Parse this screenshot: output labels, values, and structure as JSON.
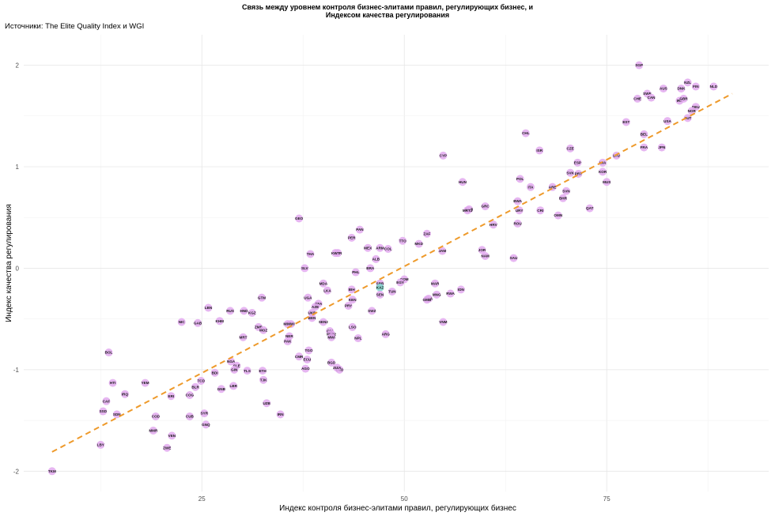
{
  "chart_data": {
    "type": "scatter",
    "title_line1": "Связь между уровнем контроля бизнес-элитами правил, регулирующих бизнес, и",
    "title_line2": "Индексом качества регулирования",
    "subtitle": "Источники: The Elite Quality Index и WGI",
    "xlabel": "Индекс контроля бизнес-элитами правил, регулирующих бизнес",
    "ylabel": "Индекс качества регулирования",
    "xlim": [
      3,
      95
    ],
    "ylim": [
      -2.2,
      2.3
    ],
    "xticks": [
      25,
      50,
      75
    ],
    "yticks": [
      -2,
      -1,
      0,
      1,
      2
    ],
    "xtick_labels": [
      "25",
      "50",
      "75"
    ],
    "ytick_labels": [
      "-2",
      "-1",
      "0",
      "1",
      "2"
    ],
    "grid": true,
    "point_color": "#e2a9ef",
    "highlight_color": "#7fd8cf",
    "trend_color": "#ee9a2b",
    "trend_line": {
      "x": [
        6.5,
        90.5
      ],
      "y": [
        -1.81,
        1.72
      ]
    },
    "points": [
      {
        "label": "TKM",
        "x": 6.5,
        "y": -2.0
      },
      {
        "label": "LBY",
        "x": 12.5,
        "y": -1.74
      },
      {
        "label": "BOL",
        "x": 13.5,
        "y": -0.83
      },
      {
        "label": "HTI",
        "x": 14.0,
        "y": -1.13
      },
      {
        "label": "CAF",
        "x": 13.2,
        "y": -1.31
      },
      {
        "label": "IRQ",
        "x": 15.5,
        "y": -1.24
      },
      {
        "label": "VEN",
        "x": 21.3,
        "y": -1.65
      },
      {
        "label": "ZWE",
        "x": 20.7,
        "y": -1.77
      },
      {
        "label": "SDN",
        "x": 14.5,
        "y": -1.44
      },
      {
        "label": "SSD",
        "x": 12.8,
        "y": -1.41
      },
      {
        "label": "YEM",
        "x": 18.0,
        "y": -1.13
      },
      {
        "label": "NIC",
        "x": 22.5,
        "y": -0.53
      },
      {
        "label": "GAB",
        "x": 24.5,
        "y": -0.54
      },
      {
        "label": "LBN",
        "x": 25.8,
        "y": -0.39
      },
      {
        "label": "KHM",
        "x": 27.2,
        "y": -0.52
      },
      {
        "label": "RUS",
        "x": 28.5,
        "y": -0.42
      },
      {
        "label": "HND",
        "x": 30.2,
        "y": -0.42
      },
      {
        "label": "KGZ",
        "x": 31.2,
        "y": -0.44
      },
      {
        "label": "GTM",
        "x": 32.4,
        "y": -0.29
      },
      {
        "label": "MRT",
        "x": 30.1,
        "y": -0.68
      },
      {
        "label": "ZMB",
        "x": 32.0,
        "y": -0.58
      },
      {
        "label": "MOZ",
        "x": 32.6,
        "y": -0.61
      },
      {
        "label": "MDG",
        "x": 35.6,
        "y": -0.55
      },
      {
        "label": "NGA",
        "x": 28.6,
        "y": -0.92
      },
      {
        "label": "SLE",
        "x": 29.3,
        "y": -0.96
      },
      {
        "label": "GIN",
        "x": 29.0,
        "y": -1.0
      },
      {
        "label": "BDI",
        "x": 26.6,
        "y": -1.03
      },
      {
        "label": "TLS",
        "x": 30.6,
        "y": -1.01
      },
      {
        "label": "ETH",
        "x": 32.5,
        "y": -1.01
      },
      {
        "label": "TJK",
        "x": 32.6,
        "y": -1.1
      },
      {
        "label": "TCD",
        "x": 24.9,
        "y": -1.11
      },
      {
        "label": "BLR",
        "x": 24.2,
        "y": -1.17
      },
      {
        "label": "GNB",
        "x": 27.4,
        "y": -1.19
      },
      {
        "label": "LBR",
        "x": 28.9,
        "y": -1.16
      },
      {
        "label": "COG",
        "x": 23.5,
        "y": -1.25
      },
      {
        "label": "COD",
        "x": 19.3,
        "y": -1.46
      },
      {
        "label": "MMR",
        "x": 19.0,
        "y": -1.6
      },
      {
        "label": "ERI",
        "x": 21.2,
        "y": -1.26
      },
      {
        "label": "CUB",
        "x": 23.5,
        "y": -1.46
      },
      {
        "label": "SYR",
        "x": 25.3,
        "y": -1.43
      },
      {
        "label": "GNQ",
        "x": 25.5,
        "y": -1.54
      },
      {
        "label": "UZB",
        "x": 33.0,
        "y": -1.33
      },
      {
        "label": "IRN",
        "x": 34.7,
        "y": -1.44
      },
      {
        "label": "NER",
        "x": 35.8,
        "y": -0.67
      },
      {
        "label": "PAK",
        "x": 35.6,
        "y": -0.72
      },
      {
        "label": "MWI",
        "x": 36.0,
        "y": -0.55
      },
      {
        "label": "GEO",
        "x": 37.0,
        "y": 0.49
      },
      {
        "label": "SLV",
        "x": 37.7,
        "y": 0.0
      },
      {
        "label": "THA",
        "x": 38.4,
        "y": 0.14
      },
      {
        "label": "UGA",
        "x": 38.1,
        "y": -0.29
      },
      {
        "label": "BFA",
        "x": 39.4,
        "y": -0.35
      },
      {
        "label": "AZE",
        "x": 39.0,
        "y": -0.38
      },
      {
        "label": "UKR",
        "x": 38.6,
        "y": -0.44
      },
      {
        "label": "BEN",
        "x": 38.6,
        "y": -0.49
      },
      {
        "label": "SEN2",
        "x": 40.0,
        "y": -0.53
      },
      {
        "label": "MDA",
        "x": 40.0,
        "y": -0.15
      },
      {
        "label": "LKA",
        "x": 40.5,
        "y": -0.22
      },
      {
        "label": "CIV",
        "x": 40.8,
        "y": -0.62
      },
      {
        "label": "MWI2",
        "x": 41.0,
        "y": -0.65
      },
      {
        "label": "MWI",
        "x": 41.0,
        "y": -0.68
      },
      {
        "label": "TGO",
        "x": 38.2,
        "y": -0.81
      },
      {
        "label": "CMR",
        "x": 37.0,
        "y": -0.87
      },
      {
        "label": "ECU",
        "x": 38.0,
        "y": -0.9
      },
      {
        "label": "AGO",
        "x": 37.8,
        "y": -0.99
      },
      {
        "label": "BGD",
        "x": 41.0,
        "y": -0.93
      },
      {
        "label": "LAO",
        "x": 42.0,
        "y": -1.0
      },
      {
        "label": "ZIZA",
        "x": 41.7,
        "y": -0.98
      },
      {
        "label": "KGR",
        "x": 41.8,
        "y": 0.15
      },
      {
        "label": "KWT",
        "x": 41.5,
        "y": 0.15
      },
      {
        "label": "PER",
        "x": 43.5,
        "y": 0.3
      },
      {
        "label": "PAN",
        "x": 44.5,
        "y": 0.38
      },
      {
        "label": "MEX",
        "x": 45.5,
        "y": 0.2
      },
      {
        "label": "ARM",
        "x": 47.0,
        "y": 0.2
      },
      {
        "label": "ALB",
        "x": 46.5,
        "y": 0.09
      },
      {
        "label": "COL",
        "x": 48.0,
        "y": 0.19
      },
      {
        "label": "BRA",
        "x": 45.8,
        "y": 0.0
      },
      {
        "label": "PHL",
        "x": 44.0,
        "y": -0.04
      },
      {
        "label": "BIH",
        "x": 43.5,
        "y": -0.21
      },
      {
        "label": "KEN",
        "x": 43.6,
        "y": -0.31
      },
      {
        "label": "PRY",
        "x": 43.1,
        "y": -0.37
      },
      {
        "label": "SWZ",
        "x": 46.0,
        "y": -0.42
      },
      {
        "label": "LSO",
        "x": 43.6,
        "y": -0.58
      },
      {
        "label": "NPL",
        "x": 44.3,
        "y": -0.69
      },
      {
        "label": "ARG",
        "x": 47.7,
        "y": -0.65
      },
      {
        "label": "SRB",
        "x": 47.0,
        "y": -0.15
      },
      {
        "label": "KAZ",
        "x": 47.0,
        "y": -0.19,
        "highlight": true
      },
      {
        "label": "SEN",
        "x": 47.0,
        "y": -0.26
      },
      {
        "label": "TUN",
        "x": 48.5,
        "y": -0.23
      },
      {
        "label": "DOM",
        "x": 50.0,
        "y": -0.11
      },
      {
        "label": "EGY",
        "x": 49.5,
        "y": -0.14
      },
      {
        "label": "TTO",
        "x": 49.8,
        "y": 0.27
      },
      {
        "label": "ZAF",
        "x": 52.8,
        "y": 0.34
      },
      {
        "label": "MKD",
        "x": 51.8,
        "y": 0.24
      },
      {
        "label": "JAM",
        "x": 54.7,
        "y": 0.17
      },
      {
        "label": "MAR",
        "x": 53.8,
        "y": -0.15
      },
      {
        "label": "MNG",
        "x": 54.0,
        "y": -0.26
      },
      {
        "label": "IDN",
        "x": 57.0,
        "y": -0.21
      },
      {
        "label": "RWA",
        "x": 55.7,
        "y": -0.25
      },
      {
        "label": "GHA",
        "x": 53.0,
        "y": -0.3
      },
      {
        "label": "GMB",
        "x": 52.8,
        "y": -0.31
      },
      {
        "label": "VNM",
        "x": 54.8,
        "y": -0.53
      },
      {
        "label": "CYP",
        "x": 54.8,
        "y": 1.11
      },
      {
        "label": "HUN",
        "x": 57.2,
        "y": 0.85
      },
      {
        "label": "BGR",
        "x": 58.0,
        "y": 0.58
      },
      {
        "label": "MRT2",
        "x": 57.8,
        "y": 0.57
      },
      {
        "label": "GRC",
        "x": 60.0,
        "y": 0.61
      },
      {
        "label": "HRV",
        "x": 61.0,
        "y": 0.43
      },
      {
        "label": "JOR",
        "x": 59.6,
        "y": 0.18
      },
      {
        "label": "NAM",
        "x": 60.0,
        "y": 0.12
      },
      {
        "label": "SAU",
        "x": 63.5,
        "y": 0.1
      },
      {
        "label": "ROU",
        "x": 64.0,
        "y": 0.44
      },
      {
        "label": "URY",
        "x": 64.2,
        "y": 0.57
      },
      {
        "label": "BWA",
        "x": 64.0,
        "y": 0.66
      },
      {
        "label": "POL",
        "x": 64.3,
        "y": 0.88
      },
      {
        "label": "ITA",
        "x": 65.6,
        "y": 0.8
      },
      {
        "label": "ARE",
        "x": 68.3,
        "y": 0.8
      },
      {
        "label": "CHL",
        "x": 65.0,
        "y": 1.33
      },
      {
        "label": "ISR",
        "x": 66.7,
        "y": 1.16
      },
      {
        "label": "CZE",
        "x": 70.5,
        "y": 1.18
      },
      {
        "label": "ESP",
        "x": 71.4,
        "y": 1.04
      },
      {
        "label": "SVK",
        "x": 70.5,
        "y": 0.94
      },
      {
        "label": "PRT",
        "x": 71.5,
        "y": 0.93
      },
      {
        "label": "LVA",
        "x": 74.5,
        "y": 1.04
      },
      {
        "label": "LTU",
        "x": 76.2,
        "y": 1.11
      },
      {
        "label": "KOR",
        "x": 74.5,
        "y": 0.95
      },
      {
        "label": "MUS",
        "x": 75.0,
        "y": 0.85
      },
      {
        "label": "SVN",
        "x": 70.0,
        "y": 0.76
      },
      {
        "label": "BHR",
        "x": 69.6,
        "y": 0.69
      },
      {
        "label": "CRI",
        "x": 66.8,
        "y": 0.57
      },
      {
        "label": "OMN",
        "x": 69.0,
        "y": 0.52
      },
      {
        "label": "QAT",
        "x": 72.9,
        "y": 0.59
      },
      {
        "label": "EST",
        "x": 77.4,
        "y": 1.44
      },
      {
        "label": "BEL",
        "x": 79.6,
        "y": 1.32
      },
      {
        "label": "FRA",
        "x": 79.6,
        "y": 1.19
      },
      {
        "label": "JPN",
        "x": 81.8,
        "y": 1.19
      },
      {
        "label": "SGP",
        "x": 79.0,
        "y": 2.0
      },
      {
        "label": "CHE",
        "x": 78.8,
        "y": 1.67
      },
      {
        "label": "SWE",
        "x": 80.0,
        "y": 1.72
      },
      {
        "label": "CAN",
        "x": 80.5,
        "y": 1.68
      },
      {
        "label": "AUS",
        "x": 82.0,
        "y": 1.77
      },
      {
        "label": "NZL",
        "x": 85.0,
        "y": 1.83
      },
      {
        "label": "DNK",
        "x": 84.2,
        "y": 1.77
      },
      {
        "label": "FIN",
        "x": 86.0,
        "y": 1.79
      },
      {
        "label": "NLD",
        "x": 88.2,
        "y": 1.79
      },
      {
        "label": "IRL",
        "x": 84.0,
        "y": 1.65
      },
      {
        "label": "GBR",
        "x": 84.5,
        "y": 1.67
      },
      {
        "label": "DEU",
        "x": 86.0,
        "y": 1.59
      },
      {
        "label": "NOR",
        "x": 85.5,
        "y": 1.55
      },
      {
        "label": "AUT",
        "x": 85.0,
        "y": 1.48
      },
      {
        "label": "USA",
        "x": 82.5,
        "y": 1.45
      }
    ]
  }
}
